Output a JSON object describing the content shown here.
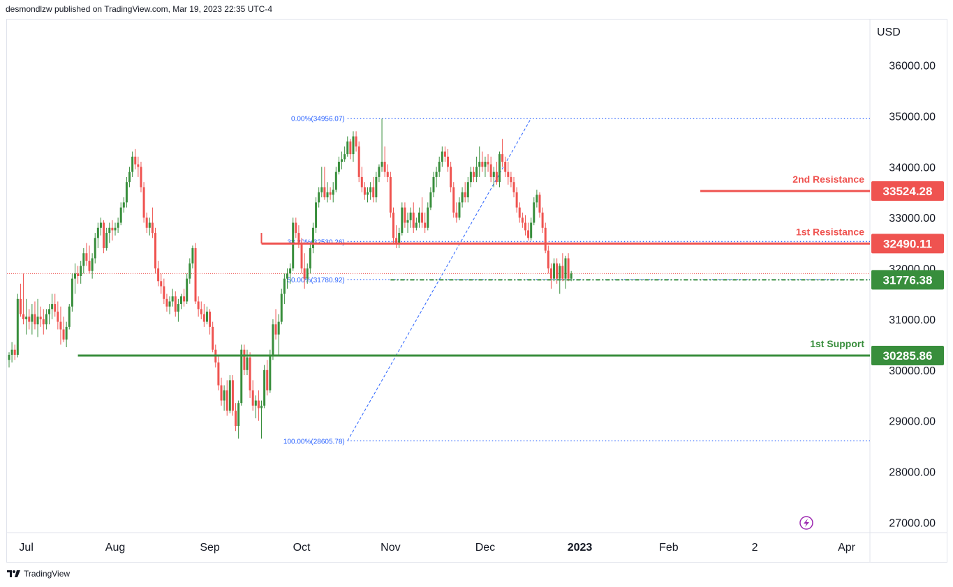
{
  "header": {
    "attribution": "desmondlzw published on TradingView.com, Mar 19, 2023 22:35 UTC-4"
  },
  "footer": {
    "brand": "TradingView"
  },
  "colors": {
    "up": "#388e3c",
    "down": "#ef5350",
    "resistance": "#ef5350",
    "support": "#388e3c",
    "fib": "#2962ff",
    "grid": "#e0e3eb",
    "text": "#131722"
  },
  "chart_data": {
    "type": "candlestick",
    "currency_label": "USD",
    "ylim": [
      26800,
      36900
    ],
    "y_ticks": [
      "36000.00",
      "35000.00",
      "34000.00",
      "33000.00",
      "32000.00",
      "31000.00",
      "30000.00",
      "29000.00",
      "28000.00",
      "27000.00"
    ],
    "x_ticks": [
      {
        "label": "Jul",
        "bold": false
      },
      {
        "label": "Aug",
        "bold": false
      },
      {
        "label": "Sep",
        "bold": false
      },
      {
        "label": "Oct",
        "bold": false
      },
      {
        "label": "Nov",
        "bold": false
      },
      {
        "label": "Dec",
        "bold": false
      },
      {
        "label": "2023",
        "bold": true
      },
      {
        "label": "Feb",
        "bold": false
      },
      {
        "label": "2",
        "bold": false
      },
      {
        "label": "Apr",
        "bold": false
      }
    ],
    "x_tick_days": [
      6,
      37,
      70,
      102,
      133,
      166,
      199,
      230,
      260,
      292
    ],
    "levels": [
      {
        "name": "2nd Resistance",
        "value": 33524.28,
        "price_label": "33524.28",
        "kind": "resistance",
        "start_day": 241
      },
      {
        "name": "1st Resistance",
        "value": 32490.11,
        "price_label": "32490.11",
        "kind": "resistance",
        "start_day": 88
      },
      {
        "name": "",
        "value": 31776.38,
        "price_label": "31776.38",
        "kind": "support-dash",
        "start_day": 133
      },
      {
        "name": "1st Support",
        "value": 30285.86,
        "price_label": "30285.86",
        "kind": "support",
        "start_day": 24
      }
    ],
    "fibonacci": [
      {
        "label": "0.00%(34956.07)",
        "value": 34956.07
      },
      {
        "label": "38.20%(32530.26)",
        "value": 32530.26
      },
      {
        "label": "50.00%(31780.92)",
        "value": 31780.92
      },
      {
        "label": "100.00%(28605.78)",
        "value": 28605.78
      }
    ],
    "fib_anchor_days": [
      120,
      182
    ],
    "last_price_line": 31900,
    "candles": [
      [
        0,
        30200,
        30350,
        30050,
        30300
      ],
      [
        1,
        30300,
        30550,
        30150,
        30400
      ],
      [
        2,
        30400,
        30500,
        30200,
        30300
      ],
      [
        3,
        30300,
        31500,
        30250,
        31400
      ],
      [
        4,
        31400,
        31700,
        31050,
        31100
      ],
      [
        5,
        31100,
        31900,
        30900,
        31000
      ],
      [
        6,
        31000,
        31400,
        30700,
        31050
      ],
      [
        7,
        31050,
        31200,
        30800,
        30950
      ],
      [
        8,
        30950,
        31300,
        30700,
        31100
      ],
      [
        9,
        31100,
        31350,
        30800,
        30900
      ],
      [
        10,
        30900,
        31400,
        30650,
        31050
      ],
      [
        11,
        31050,
        31250,
        30850,
        31000
      ],
      [
        12,
        31000,
        31200,
        30700,
        30900
      ],
      [
        13,
        30900,
        31200,
        30800,
        31100
      ],
      [
        14,
        31100,
        31300,
        30900,
        31200
      ],
      [
        15,
        31200,
        31500,
        31000,
        31300
      ],
      [
        16,
        31300,
        31500,
        31050,
        31150
      ],
      [
        17,
        31150,
        31350,
        30800,
        30950
      ],
      [
        18,
        30950,
        31250,
        30500,
        30800
      ],
      [
        19,
        30800,
        31050,
        30550,
        30600
      ],
      [
        20,
        30600,
        30950,
        30450,
        30850
      ],
      [
        21,
        30850,
        31300,
        30800,
        31250
      ],
      [
        22,
        31250,
        31900,
        31150,
        31800
      ],
      [
        23,
        31800,
        32100,
        31500,
        31900
      ],
      [
        24,
        31900,
        32050,
        31700,
        31850
      ],
      [
        25,
        31850,
        32150,
        31700,
        32050
      ],
      [
        26,
        32050,
        32400,
        31900,
        32300
      ],
      [
        27,
        32300,
        32500,
        32050,
        32150
      ],
      [
        28,
        32150,
        32450,
        31900,
        31950
      ],
      [
        29,
        31950,
        32300,
        31800,
        32200
      ],
      [
        30,
        32200,
        32700,
        32100,
        32600
      ],
      [
        31,
        32600,
        32900,
        32400,
        32800
      ],
      [
        32,
        32800,
        33000,
        32650,
        32900
      ],
      [
        33,
        32900,
        32950,
        32300,
        32400
      ],
      [
        34,
        32400,
        32800,
        32350,
        32700
      ],
      [
        35,
        32700,
        32900,
        32500,
        32800
      ],
      [
        36,
        32800,
        32950,
        32550,
        32750
      ],
      [
        37,
        32750,
        32900,
        32650,
        32800
      ],
      [
        38,
        32800,
        33000,
        32700,
        32900
      ],
      [
        39,
        32900,
        33300,
        32850,
        33200
      ],
      [
        40,
        33200,
        33400,
        33100,
        33300
      ],
      [
        41,
        33300,
        33800,
        33200,
        33700
      ],
      [
        42,
        33700,
        34000,
        33600,
        33900
      ],
      [
        43,
        33900,
        34300,
        33800,
        34200
      ],
      [
        44,
        34200,
        34350,
        33950,
        34050
      ],
      [
        45,
        34050,
        34200,
        33800,
        34000
      ],
      [
        46,
        34000,
        34100,
        33500,
        33600
      ],
      [
        47,
        33600,
        33700,
        32900,
        33000
      ],
      [
        48,
        33000,
        33100,
        32700,
        32800
      ],
      [
        49,
        32800,
        33000,
        32650,
        32900
      ],
      [
        50,
        32900,
        33200,
        32600,
        32700
      ],
      [
        51,
        32700,
        32800,
        31900,
        32000
      ],
      [
        52,
        32000,
        32150,
        31650,
        31750
      ],
      [
        53,
        31750,
        31900,
        31500,
        31650
      ],
      [
        54,
        31650,
        31800,
        31300,
        31400
      ],
      [
        55,
        31400,
        31500,
        31150,
        31250
      ],
      [
        56,
        31250,
        31450,
        31100,
        31350
      ],
      [
        57,
        31350,
        31600,
        31250,
        31450
      ],
      [
        58,
        31450,
        31550,
        31050,
        31150
      ],
      [
        59,
        31150,
        31400,
        30950,
        31300
      ],
      [
        60,
        31300,
        31500,
        31200,
        31450
      ],
      [
        61,
        31450,
        31600,
        31250,
        31350
      ],
      [
        62,
        31350,
        31900,
        31300,
        31800
      ],
      [
        63,
        31800,
        32200,
        31700,
        32100
      ],
      [
        64,
        32100,
        32450,
        32000,
        32400
      ],
      [
        65,
        32400,
        32500,
        31300,
        31350
      ],
      [
        66,
        31350,
        31450,
        31050,
        31200
      ],
      [
        67,
        31200,
        31350,
        31000,
        31100
      ],
      [
        68,
        31100,
        31300,
        30850,
        30950
      ],
      [
        69,
        30950,
        31250,
        30900,
        31150
      ],
      [
        70,
        31150,
        31200,
        30700,
        30850
      ],
      [
        71,
        30850,
        30950,
        30350,
        30400
      ],
      [
        72,
        30400,
        30500,
        30050,
        30150
      ],
      [
        73,
        30150,
        30300,
        29600,
        29700
      ],
      [
        74,
        29700,
        29850,
        29300,
        29400
      ],
      [
        75,
        29400,
        29700,
        29200,
        29600
      ],
      [
        76,
        29600,
        29800,
        29100,
        29200
      ],
      [
        77,
        29200,
        29900,
        29150,
        29800
      ],
      [
        78,
        29800,
        29900,
        29100,
        29200
      ],
      [
        79,
        29200,
        29350,
        28800,
        28900
      ],
      [
        80,
        28900,
        29400,
        28650,
        29350
      ],
      [
        81,
        29350,
        30500,
        29300,
        30400
      ],
      [
        82,
        30400,
        30500,
        29900,
        30000
      ],
      [
        83,
        30000,
        30400,
        29900,
        30250
      ],
      [
        84,
        30250,
        30350,
        29450,
        29600
      ],
      [
        85,
        29600,
        29800,
        29200,
        29300
      ],
      [
        86,
        29300,
        29500,
        29050,
        29400
      ],
      [
        87,
        29400,
        29600,
        29000,
        29250
      ],
      [
        88,
        29250,
        29400,
        28650,
        29300
      ],
      [
        89,
        29300,
        30100,
        29250,
        30000
      ],
      [
        90,
        30000,
        30200,
        29500,
        29600
      ],
      [
        91,
        29600,
        30400,
        29550,
        30300
      ],
      [
        92,
        30300,
        31000,
        30200,
        30900
      ],
      [
        93,
        30900,
        31200,
        30600,
        30700
      ],
      [
        94,
        30700,
        31100,
        30300,
        30950
      ],
      [
        95,
        30950,
        31600,
        30900,
        31500
      ],
      [
        96,
        31500,
        31900,
        31300,
        31800
      ],
      [
        97,
        31800,
        32000,
        31600,
        31900
      ],
      [
        98,
        31900,
        32100,
        31700,
        32000
      ],
      [
        99,
        32000,
        33000,
        31950,
        32900
      ],
      [
        100,
        32900,
        33000,
        32600,
        32700
      ],
      [
        101,
        32700,
        32850,
        32400,
        32500
      ],
      [
        102,
        32500,
        32600,
        31900,
        32000
      ],
      [
        103,
        32000,
        32300,
        31600,
        31800
      ],
      [
        104,
        31800,
        32100,
        31700,
        32000
      ],
      [
        105,
        32000,
        32500,
        31900,
        32400
      ],
      [
        106,
        32400,
        32900,
        32300,
        32800
      ],
      [
        107,
        32800,
        33400,
        32700,
        33300
      ],
      [
        108,
        33300,
        33600,
        33200,
        33500
      ],
      [
        109,
        33500,
        34000,
        33400,
        33600
      ],
      [
        110,
        33600,
        34000,
        33350,
        33400
      ],
      [
        111,
        33400,
        33700,
        33300,
        33500
      ],
      [
        112,
        33500,
        33600,
        33350,
        33450
      ],
      [
        113,
        33450,
        33700,
        33300,
        33550
      ],
      [
        114,
        33550,
        34000,
        33500,
        33900
      ],
      [
        115,
        33900,
        34200,
        33850,
        34100
      ],
      [
        116,
        34100,
        34300,
        33950,
        34150
      ],
      [
        117,
        34150,
        34400,
        34100,
        34250
      ],
      [
        118,
        34250,
        34600,
        34200,
        34500
      ],
      [
        119,
        34500,
        34550,
        34150,
        34250
      ],
      [
        120,
        34250,
        34700,
        34100,
        34600
      ],
      [
        121,
        34600,
        34700,
        34300,
        34400
      ],
      [
        122,
        34400,
        34500,
        33700,
        33800
      ],
      [
        123,
        33800,
        34000,
        33500,
        33600
      ],
      [
        124,
        33600,
        33700,
        33350,
        33450
      ],
      [
        125,
        33450,
        33600,
        33300,
        33500
      ],
      [
        126,
        33500,
        33700,
        33350,
        33600
      ],
      [
        127,
        33600,
        33800,
        33300,
        33400
      ],
      [
        128,
        33400,
        33900,
        33300,
        33800
      ],
      [
        129,
        33800,
        34050,
        33700,
        34000
      ],
      [
        130,
        34000,
        34950,
        33900,
        34100
      ],
      [
        131,
        34100,
        34400,
        33800,
        33900
      ],
      [
        132,
        33900,
        34050,
        33700,
        33800
      ],
      [
        133,
        33800,
        33900,
        33000,
        33100
      ],
      [
        134,
        33100,
        33200,
        32500,
        32600
      ],
      [
        135,
        32600,
        32850,
        32400,
        32500
      ],
      [
        136,
        32500,
        32800,
        32400,
        32700
      ],
      [
        137,
        32700,
        33300,
        32650,
        33200
      ],
      [
        138,
        33200,
        33300,
        32800,
        32900
      ],
      [
        139,
        32900,
        33100,
        32700,
        32950
      ],
      [
        140,
        32950,
        33200,
        32800,
        33100
      ],
      [
        141,
        33100,
        33300,
        32700,
        32800
      ],
      [
        142,
        32800,
        33000,
        32750,
        32900
      ],
      [
        143,
        32900,
        33200,
        32800,
        33100
      ],
      [
        144,
        33100,
        33400,
        32800,
        32900
      ],
      [
        145,
        32900,
        33100,
        32700,
        32800
      ],
      [
        146,
        32800,
        33300,
        32750,
        33200
      ],
      [
        147,
        33200,
        33600,
        33150,
        33500
      ],
      [
        148,
        33500,
        33900,
        33400,
        33800
      ],
      [
        149,
        33800,
        34000,
        33600,
        33900
      ],
      [
        150,
        33900,
        34200,
        33800,
        34100
      ],
      [
        151,
        34100,
        34400,
        34000,
        34300
      ],
      [
        152,
        34300,
        34400,
        34100,
        34200
      ],
      [
        153,
        34200,
        34350,
        33900,
        34000
      ],
      [
        154,
        34000,
        34100,
        33500,
        33600
      ],
      [
        155,
        33600,
        33700,
        33000,
        33100
      ],
      [
        156,
        33100,
        33300,
        32900,
        33000
      ],
      [
        157,
        33000,
        33400,
        32950,
        33300
      ],
      [
        158,
        33300,
        33600,
        33200,
        33500
      ],
      [
        159,
        33500,
        33700,
        33300,
        33400
      ],
      [
        160,
        33400,
        33800,
        33300,
        33700
      ],
      [
        161,
        33700,
        34000,
        33600,
        33900
      ],
      [
        162,
        33900,
        34000,
        33700,
        33800
      ],
      [
        163,
        33800,
        34200,
        33700,
        34000
      ],
      [
        164,
        34000,
        34400,
        33800,
        34100
      ],
      [
        165,
        34100,
        34300,
        33900,
        34000
      ],
      [
        166,
        34000,
        34200,
        33800,
        34100
      ],
      [
        167,
        34100,
        34250,
        33900,
        34050
      ],
      [
        168,
        34050,
        34200,
        33700,
        33800
      ],
      [
        169,
        33800,
        34000,
        33600,
        33900
      ],
      [
        170,
        33900,
        34100,
        33650,
        33700
      ],
      [
        171,
        33700,
        34300,
        33600,
        34250
      ],
      [
        172,
        34250,
        34550,
        34000,
        34100
      ],
      [
        173,
        34100,
        34200,
        33800,
        33900
      ],
      [
        174,
        33900,
        34100,
        33650,
        33800
      ],
      [
        175,
        33800,
        33900,
        33600,
        33700
      ],
      [
        176,
        33700,
        33800,
        33400,
        33500
      ],
      [
        177,
        33500,
        33600,
        33100,
        33200
      ],
      [
        178,
        33200,
        33300,
        32900,
        33000
      ],
      [
        179,
        33000,
        33100,
        32800,
        32900
      ],
      [
        180,
        32900,
        33050,
        32650,
        32750
      ],
      [
        181,
        32750,
        32900,
        32550,
        32600
      ],
      [
        182,
        32600,
        33000,
        32550,
        32900
      ],
      [
        183,
        32900,
        33400,
        32850,
        33300
      ],
      [
        184,
        33300,
        33550,
        33200,
        33450
      ],
      [
        185,
        33450,
        33500,
        33000,
        33100
      ],
      [
        186,
        33100,
        33200,
        32700,
        32800
      ],
      [
        187,
        32800,
        32900,
        32300,
        32350
      ],
      [
        188,
        32350,
        32450,
        31900,
        32000
      ],
      [
        189,
        32000,
        32100,
        31600,
        31800
      ],
      [
        190,
        31800,
        32200,
        31750,
        32100
      ],
      [
        191,
        32100,
        32200,
        31700,
        31800
      ],
      [
        192,
        31800,
        32100,
        31500,
        32050
      ],
      [
        193,
        32050,
        32300,
        31750,
        31800
      ],
      [
        194,
        31800,
        32250,
        31600,
        32200
      ],
      [
        195,
        32200,
        32300,
        31750,
        31800
      ],
      [
        196,
        31800,
        31950,
        31750,
        31900
      ]
    ]
  }
}
